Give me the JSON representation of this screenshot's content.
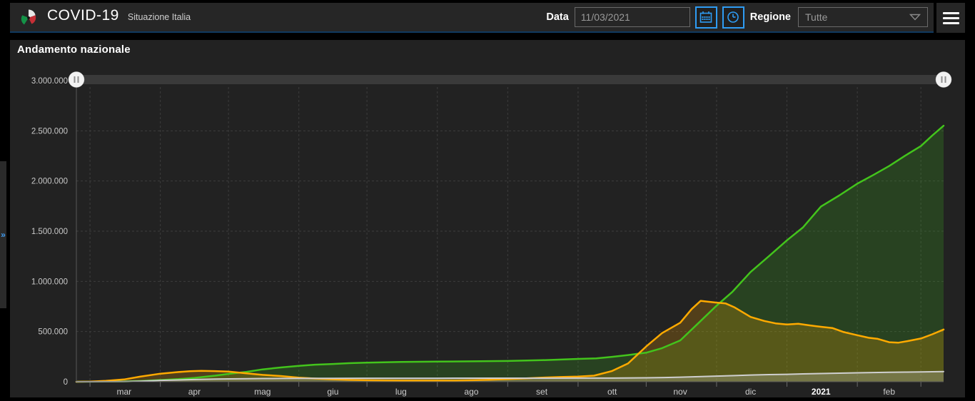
{
  "header": {
    "title": "COVID-19",
    "subtitle": "Situazione Italia",
    "data_label": "Data",
    "date_value": "11/03/2021",
    "regione_label": "Regione",
    "regione_value": "Tutte"
  },
  "panel": {
    "title": "Andamento nazionale"
  },
  "colors": {
    "accent_blue": "#2e9cf4",
    "green_series": "#43c41c",
    "orange_series": "#ffaa00",
    "gray_series": "#cfcfcf",
    "grid": "#3d3d3d",
    "axis": "#585858",
    "slider_track": "#3a3a3a",
    "slider_handle": "#f2f2f2"
  },
  "chart_data": {
    "type": "area",
    "title": "Andamento nazionale",
    "grid": true,
    "legend": "none",
    "x_axis": {
      "start_date": "2020-02-24",
      "end_date": "2021-03-11",
      "total_days": 382,
      "month_boundary_days": [
        6,
        37,
        67,
        98,
        128,
        159,
        190,
        221,
        251,
        282,
        313,
        344,
        372
      ],
      "tick_labels": [
        {
          "label": "mar",
          "day": 21,
          "bold": false
        },
        {
          "label": "apr",
          "day": 52,
          "bold": false
        },
        {
          "label": "mag",
          "day": 82,
          "bold": false
        },
        {
          "label": "giu",
          "day": 113,
          "bold": false
        },
        {
          "label": "lug",
          "day": 143,
          "bold": false
        },
        {
          "label": "ago",
          "day": 174,
          "bold": false
        },
        {
          "label": "set",
          "day": 205,
          "bold": false
        },
        {
          "label": "ott",
          "day": 236,
          "bold": false
        },
        {
          "label": "nov",
          "day": 266,
          "bold": false
        },
        {
          "label": "dic",
          "day": 297,
          "bold": false
        },
        {
          "label": "2021",
          "day": 328,
          "bold": true
        },
        {
          "label": "feb",
          "day": 358,
          "bold": false
        }
      ]
    },
    "y_axis": {
      "min": 0,
      "max": 3000000,
      "step": 500000,
      "ticks": [
        {
          "value": 0,
          "label": "0"
        },
        {
          "value": 500000,
          "label": "500.000"
        },
        {
          "value": 1000000,
          "label": "1.000.000"
        },
        {
          "value": 1500000,
          "label": "1.500.000"
        },
        {
          "value": 2000000,
          "label": "2.000.000"
        },
        {
          "value": 2500000,
          "label": "2.500.000"
        },
        {
          "value": 3000000,
          "label": "3.000.000"
        }
      ]
    },
    "series": [
      {
        "name": "series-green",
        "color": "#43c41c",
        "fill_opacity": 0.2,
        "line_width": 2.5,
        "points": [
          [
            0,
            0
          ],
          [
            6,
            1000
          ],
          [
            13,
            1966
          ],
          [
            21,
            2941
          ],
          [
            28,
            7024
          ],
          [
            37,
            16847
          ],
          [
            45,
            26491
          ],
          [
            52,
            38092
          ],
          [
            61,
            60498
          ],
          [
            67,
            78249
          ],
          [
            75,
            99023
          ],
          [
            82,
            122810
          ],
          [
            90,
            141981
          ],
          [
            98,
            157507
          ],
          [
            105,
            169939
          ],
          [
            113,
            177010
          ],
          [
            120,
            184585
          ],
          [
            128,
            190717
          ],
          [
            143,
            196949
          ],
          [
            159,
            200229
          ],
          [
            174,
            203326
          ],
          [
            190,
            206902
          ],
          [
            205,
            214645
          ],
          [
            221,
            227704
          ],
          [
            229,
            233197
          ],
          [
            236,
            247872
          ],
          [
            243,
            266203
          ],
          [
            251,
            289426
          ],
          [
            258,
            335074
          ],
          [
            266,
            411434
          ],
          [
            274,
            584493
          ],
          [
            282,
            757507
          ],
          [
            289,
            896308
          ],
          [
            297,
            1093161
          ],
          [
            305,
            1249470
          ],
          [
            313,
            1408686
          ],
          [
            320,
            1536129
          ],
          [
            328,
            1745726
          ],
          [
            336,
            1855127
          ],
          [
            344,
            1973388
          ],
          [
            351,
            2059248
          ],
          [
            358,
            2149350
          ],
          [
            365,
            2251734
          ],
          [
            372,
            2347866
          ],
          [
            377,
            2453386
          ],
          [
            382,
            2550483
          ]
        ]
      },
      {
        "name": "series-orange",
        "color": "#ffaa00",
        "fill_opacity": 0.22,
        "line_width": 2.5,
        "points": [
          [
            0,
            221
          ],
          [
            6,
            1577
          ],
          [
            13,
            8514
          ],
          [
            21,
            23073
          ],
          [
            28,
            50418
          ],
          [
            37,
            80572
          ],
          [
            45,
            96877
          ],
          [
            50,
            104291
          ],
          [
            55,
            108257
          ],
          [
            61,
            105847
          ],
          [
            67,
            101551
          ],
          [
            75,
            83324
          ],
          [
            82,
            68351
          ],
          [
            90,
            56594
          ],
          [
            98,
            41367
          ],
          [
            105,
            31710
          ],
          [
            113,
            23925
          ],
          [
            120,
            18655
          ],
          [
            128,
            15255
          ],
          [
            136,
            13459
          ],
          [
            143,
            12493
          ],
          [
            151,
            12230
          ],
          [
            159,
            12422
          ],
          [
            167,
            12924
          ],
          [
            174,
            14867
          ],
          [
            182,
            19714
          ],
          [
            190,
            26754
          ],
          [
            198,
            33789
          ],
          [
            205,
            41413
          ],
          [
            213,
            46780
          ],
          [
            221,
            51263
          ],
          [
            228,
            60134
          ],
          [
            236,
            107312
          ],
          [
            243,
            182287
          ],
          [
            251,
            351386
          ],
          [
            258,
            485077
          ],
          [
            266,
            588066
          ],
          [
            271,
            723779
          ],
          [
            275,
            805947
          ],
          [
            278,
            798386
          ],
          [
            282,
            788471
          ],
          [
            286,
            779945
          ],
          [
            290,
            740098
          ],
          [
            297,
            645706
          ],
          [
            303,
            605955
          ],
          [
            308,
            581760
          ],
          [
            313,
            569896
          ],
          [
            318,
            577062
          ],
          [
            323,
            561380
          ],
          [
            328,
            547058
          ],
          [
            333,
            535524
          ],
          [
            338,
            494769
          ],
          [
            344,
            463352
          ],
          [
            349,
            437765
          ],
          [
            353,
            427024
          ],
          [
            358,
            393686
          ],
          [
            362,
            388895
          ],
          [
            366,
            404664
          ],
          [
            372,
            430996
          ],
          [
            377,
            472862
          ],
          [
            382,
            520061
          ]
        ]
      },
      {
        "name": "series-gray",
        "color": "#cfcfcf",
        "fill_opacity": 0.25,
        "line_width": 2,
        "points": [
          [
            0,
            7
          ],
          [
            6,
            34
          ],
          [
            13,
            366
          ],
          [
            21,
            2158
          ],
          [
            28,
            5476
          ],
          [
            37,
            13155
          ],
          [
            45,
            17669
          ],
          [
            52,
            22170
          ],
          [
            61,
            25969
          ],
          [
            67,
            28236
          ],
          [
            75,
            30201
          ],
          [
            82,
            31763
          ],
          [
            90,
            32785
          ],
          [
            98,
            33415
          ],
          [
            113,
            34405
          ],
          [
            128,
            34818
          ],
          [
            143,
            35017
          ],
          [
            159,
            35146
          ],
          [
            174,
            35400
          ],
          [
            190,
            35491
          ],
          [
            205,
            35668
          ],
          [
            221,
            35941
          ],
          [
            236,
            36427
          ],
          [
            251,
            38826
          ],
          [
            259,
            41750
          ],
          [
            266,
            45229
          ],
          [
            274,
            50453
          ],
          [
            282,
            56361
          ],
          [
            290,
            61240
          ],
          [
            297,
            66537
          ],
          [
            305,
            71359
          ],
          [
            313,
            74159
          ],
          [
            320,
            78394
          ],
          [
            328,
            81800
          ],
          [
            336,
            85461
          ],
          [
            344,
            88845
          ],
          [
            351,
            91580
          ],
          [
            358,
            94171
          ],
          [
            365,
            95992
          ],
          [
            372,
            97945
          ],
          [
            377,
            99785
          ],
          [
            382,
            101184
          ]
        ]
      }
    ],
    "time_slider": {
      "handle_icon": "pause-bars",
      "range": "full"
    }
  }
}
